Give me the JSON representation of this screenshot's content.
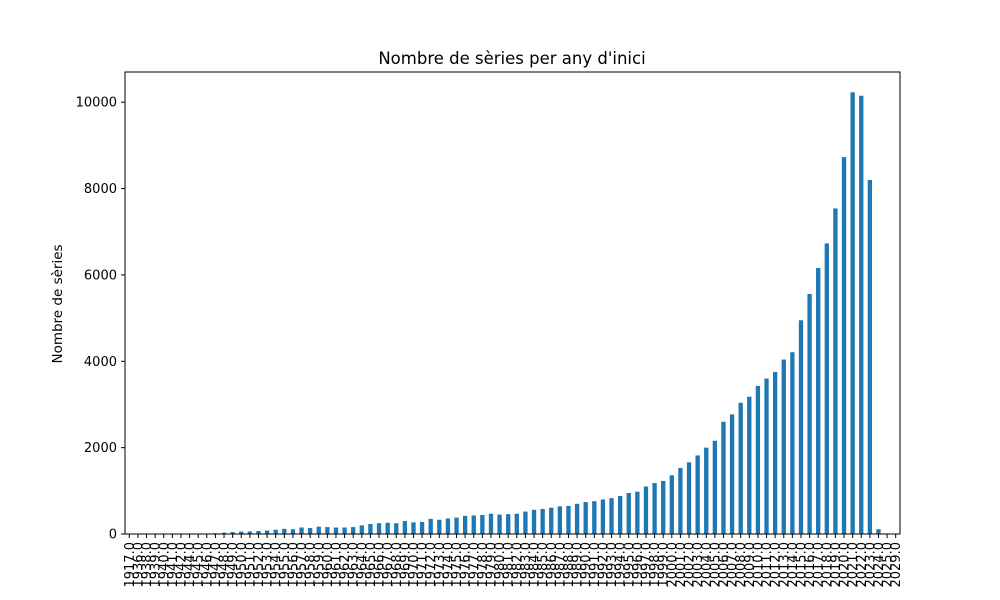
{
  "chart_data": {
    "type": "bar",
    "title": "Nombre de sèries per any d'inici",
    "xlabel": "",
    "ylabel": "Nombre de sèries",
    "ylim": [
      0,
      10700
    ],
    "yticks": [
      0,
      2000,
      4000,
      6000,
      8000,
      10000
    ],
    "bar_color": "#1f77b4",
    "grid": false,
    "categories": [
      "1917.0",
      "1936.0",
      "1938.0",
      "1939.0",
      "1940.0",
      "1941.0",
      "1942.0",
      "1944.0",
      "1945.0",
      "1946.0",
      "1947.0",
      "1948.0",
      "1949.0",
      "1950.0",
      "1951.0",
      "1952.0",
      "1953.0",
      "1954.0",
      "1955.0",
      "1956.0",
      "1957.0",
      "1958.0",
      "1959.0",
      "1960.0",
      "1961.0",
      "1962.0",
      "1963.0",
      "1964.0",
      "1965.0",
      "1966.0",
      "1967.0",
      "1968.0",
      "1969.0",
      "1970.0",
      "1971.0",
      "1972.0",
      "1973.0",
      "1974.0",
      "1975.0",
      "1976.0",
      "1977.0",
      "1978.0",
      "1979.0",
      "1980.0",
      "1981.0",
      "1982.0",
      "1983.0",
      "1984.0",
      "1985.0",
      "1986.0",
      "1987.0",
      "1988.0",
      "1989.0",
      "1990.0",
      "1991.0",
      "1992.0",
      "1993.0",
      "1994.0",
      "1995.0",
      "1996.0",
      "1997.0",
      "1998.0",
      "1999.0",
      "2000.0",
      "2001.0",
      "2002.0",
      "2003.0",
      "2004.0",
      "2005.0",
      "2006.0",
      "2007.0",
      "2008.0",
      "2009.0",
      "2010.0",
      "2011.0",
      "2012.0",
      "2013.0",
      "2014.0",
      "2015.0",
      "2016.0",
      "2017.0",
      "2018.0",
      "2019.0",
      "2020.0",
      "2021.0",
      "2022.0",
      "2023.0",
      "2024.0",
      "2025.0",
      "2029.0"
    ],
    "values": [
      1,
      1,
      1,
      1,
      1,
      2,
      2,
      3,
      5,
      10,
      18,
      30,
      45,
      55,
      60,
      70,
      80,
      100,
      120,
      110,
      150,
      140,
      170,
      160,
      150,
      150,
      160,
      200,
      230,
      250,
      260,
      250,
      300,
      270,
      280,
      350,
      330,
      360,
      380,
      420,
      430,
      440,
      470,
      450,
      460,
      470,
      520,
      560,
      580,
      610,
      640,
      650,
      700,
      740,
      760,
      800,
      830,
      880,
      950,
      980,
      1100,
      1180,
      1230,
      1360,
      1530,
      1660,
      1820,
      2000,
      2160,
      2600,
      2770,
      3040,
      3180,
      3430,
      3600,
      3750,
      4040,
      4210,
      4950,
      5560,
      6160,
      6730,
      7540,
      8730,
      10230,
      10150,
      8200,
      110,
      3,
      1
    ]
  }
}
